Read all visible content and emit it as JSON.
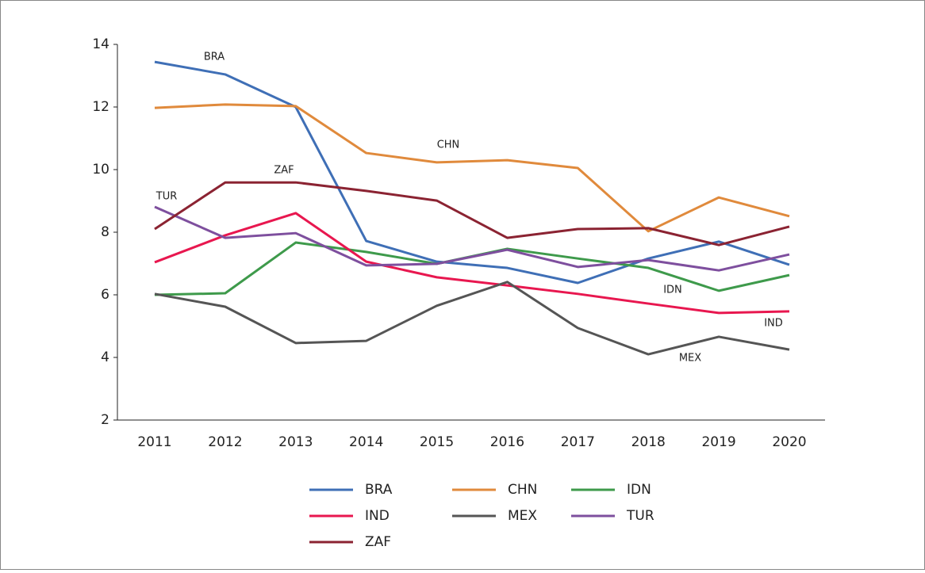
{
  "chart_data": {
    "type": "line",
    "x": [
      "2011",
      "2012",
      "2013",
      "2014",
      "2015",
      "2016",
      "2017",
      "2018",
      "2019",
      "2020"
    ],
    "series": [
      {
        "name": "BRA",
        "color": "#3f6fb6",
        "values": [
          13.44,
          13.04,
          12.0,
          7.72,
          7.06,
          6.86,
          6.38,
          7.16,
          7.7,
          6.96
        ]
      },
      {
        "name": "CHN",
        "color": "#e08a3c",
        "values": [
          11.97,
          12.08,
          12.03,
          10.53,
          10.23,
          10.3,
          10.05,
          8.03,
          9.11,
          8.51
        ]
      },
      {
        "name": "IDN",
        "color": "#3e9a4b",
        "values": [
          6.0,
          6.05,
          7.67,
          7.37,
          6.99,
          7.47,
          7.16,
          6.86,
          6.13,
          6.63
        ]
      },
      {
        "name": "IND",
        "color": "#e8174f",
        "values": [
          7.04,
          7.9,
          8.61,
          7.06,
          6.56,
          6.3,
          6.03,
          5.72,
          5.42,
          5.47
        ]
      },
      {
        "name": "MEX",
        "color": "#555555",
        "values": [
          6.03,
          5.62,
          4.46,
          4.53,
          5.65,
          6.41,
          4.94,
          4.1,
          4.66,
          4.25
        ]
      },
      {
        "name": "TUR",
        "color": "#7e4f9e",
        "values": [
          8.81,
          7.82,
          7.97,
          6.94,
          6.99,
          7.44,
          6.89,
          7.11,
          6.78,
          7.29
        ]
      },
      {
        "name": "ZAF",
        "color": "#8b2332",
        "values": [
          8.1,
          9.59,
          9.59,
          9.32,
          9.01,
          7.82,
          8.1,
          8.13,
          7.59,
          8.18
        ]
      }
    ],
    "annotations": [
      "BRA",
      "CHN",
      "ZAF",
      "TUR",
      "IDN",
      "IND",
      "MEX"
    ],
    "ylim": [
      2,
      14
    ],
    "yticks": [
      2,
      4,
      6,
      8,
      10,
      12,
      14
    ],
    "legend": "bottom"
  }
}
